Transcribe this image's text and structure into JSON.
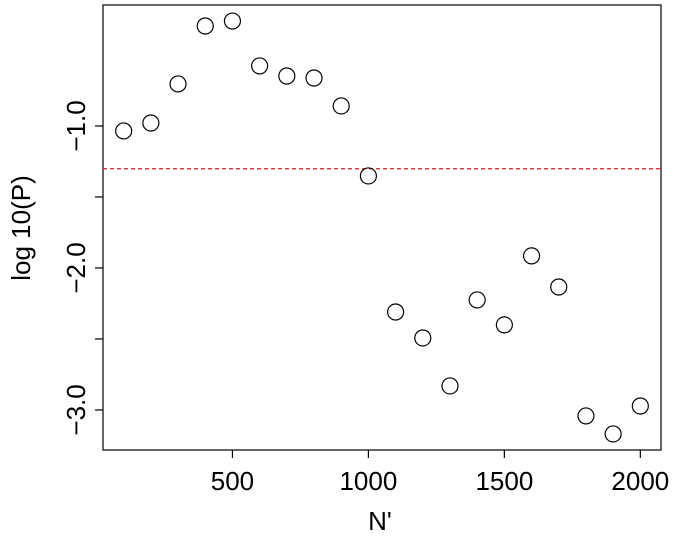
{
  "chart_data": {
    "type": "scatter",
    "x_label": "N'",
    "y_label": "log 10(P)",
    "x": [
      100,
      200,
      300,
      400,
      500,
      600,
      700,
      800,
      900,
      1000,
      1100,
      1200,
      1300,
      1400,
      1500,
      1600,
      1700,
      1800,
      1900,
      2000
    ],
    "values": [
      -1.035,
      -0.979,
      -0.704,
      -0.296,
      -0.261,
      -0.577,
      -0.648,
      -0.662,
      -0.859,
      -1.352,
      -2.31,
      -2.493,
      -2.831,
      -2.225,
      -2.401,
      -1.915,
      -2.134,
      -3.042,
      -3.169,
      -2.972
    ],
    "color": "#000000",
    "xlim": [
      24,
      2076
    ],
    "ylim": [
      -3.282,
      -0.148
    ],
    "xticks": [
      500,
      1000,
      1500,
      2000
    ],
    "yticks": [
      {
        "value": -1,
        "label": "−1.0"
      },
      {
        "value": -1.5,
        "label": null
      },
      {
        "value": -2,
        "label": "−2.0"
      },
      {
        "value": -2.5,
        "label": null
      },
      {
        "value": -3,
        "label": "−3.0"
      }
    ],
    "hline": -1.301,
    "hline_color": "#e31a1c"
  }
}
